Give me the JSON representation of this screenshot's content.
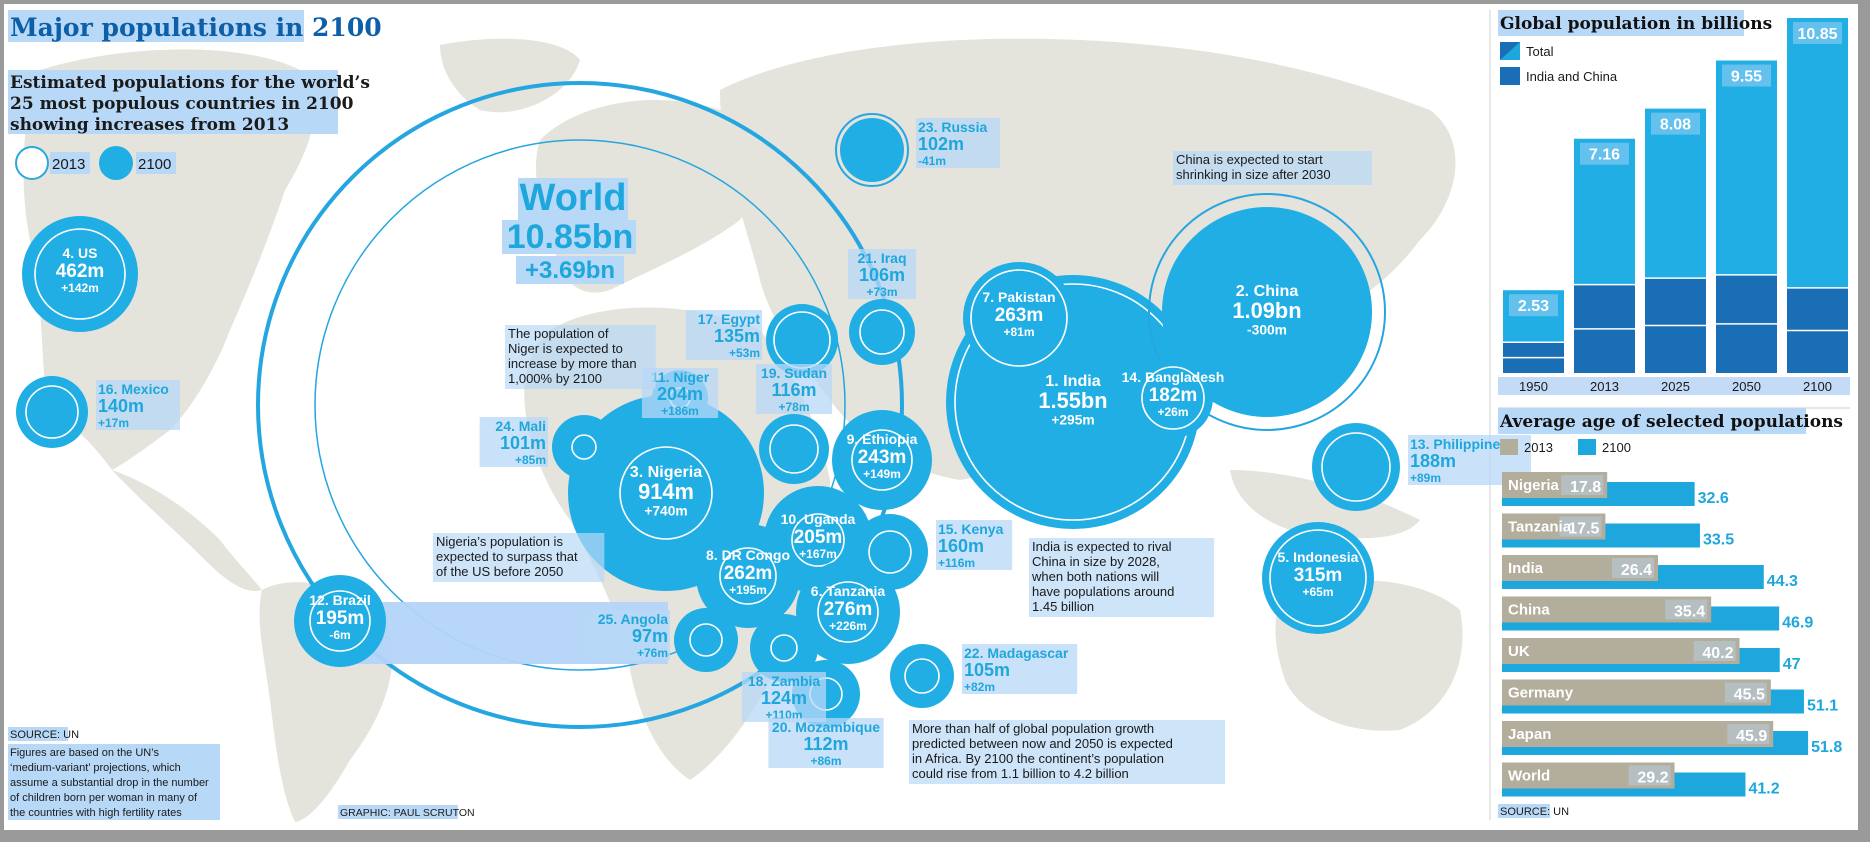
{
  "header": {
    "title": "Major populations in 2100",
    "subtitle_lines": [
      "Estimated populations for the world’s",
      "25 most populous countries in 2100",
      "showing increases from 2013"
    ]
  },
  "bubble_legend": {
    "y2013": "2013",
    "y2100": "2100"
  },
  "world": {
    "label": "World",
    "value": "10.85bn",
    "change": "+3.69bn"
  },
  "countries": [
    {
      "rank": "4. US",
      "value": "462m",
      "change": "+142m"
    },
    {
      "rank": "16. Mexico",
      "value": "140m",
      "change": "+17m"
    },
    {
      "rank": "23. Russia",
      "value": "102m",
      "change": "-41m"
    },
    {
      "rank": "21. Iraq",
      "value": "106m",
      "change": "+73m"
    },
    {
      "rank": "17. Egypt",
      "value": "135m",
      "change": "+53m"
    },
    {
      "rank": "19. Sudan",
      "value": "116m",
      "change": "+78m"
    },
    {
      "rank": "11. Niger",
      "value": "204m",
      "change": "+186m"
    },
    {
      "rank": "24. Mali",
      "value": "101m",
      "change": "+85m"
    },
    {
      "rank": "3. Nigeria",
      "value": "914m",
      "change": "+740m"
    },
    {
      "rank": "9. Ethiopia",
      "value": "243m",
      "change": "+149m"
    },
    {
      "rank": "10. Uganda",
      "value": "205m",
      "change": "+167m"
    },
    {
      "rank": "15. Kenya",
      "value": "160m",
      "change": "+116m"
    },
    {
      "rank": "8. DR Congo",
      "value": "262m",
      "change": "+195m"
    },
    {
      "rank": "6. Tanzania",
      "value": "276m",
      "change": "+226m"
    },
    {
      "rank": "25. Angola",
      "value": "97m",
      "change": "+76m"
    },
    {
      "rank": "18. Zambia",
      "value": "124m",
      "change": "+110m"
    },
    {
      "rank": "22. Madagascar",
      "value": "105m",
      "change": "+82m"
    },
    {
      "rank": "20. Mozambique",
      "value": "112m",
      "change": "+86m"
    },
    {
      "rank": "12. Brazil",
      "value": "195m",
      "change": "-6m"
    },
    {
      "rank": "7. Pakistan",
      "value": "263m",
      "change": "+81m"
    },
    {
      "rank": "1. India",
      "value": "1.55bn",
      "change": "+295m"
    },
    {
      "rank": "14. Bangladesh",
      "value": "182m",
      "change": "+26m"
    },
    {
      "rank": "2. China",
      "value": "1.09bn",
      "change": "-300m"
    },
    {
      "rank": "13. Philippines",
      "value": "188m",
      "change": "+89m"
    },
    {
      "rank": "5. Indonesia",
      "value": "315m",
      "change": "+65m"
    }
  ],
  "annotations": [
    {
      "lines": [
        "The population of",
        "Niger is expected to",
        "increase by more than",
        "1,000% by 2100"
      ]
    },
    {
      "lines": [
        "Nigeria’s population is",
        "expected to surpass that",
        "of the US before 2050"
      ]
    },
    {
      "lines": [
        "China is expected to start",
        "shrinking in size after 2030"
      ]
    },
    {
      "lines": [
        "India is expected to rival",
        "China in size by 2028,",
        "when both nations will",
        "have populations around",
        "1.45 billion"
      ]
    },
    {
      "lines": [
        "More than half of global population growth",
        "predicted between now and 2050 is expected",
        "in Africa. By 2100 the continent’s population",
        "could rise from 1.1 billion to 4.2 billion"
      ]
    }
  ],
  "footer": {
    "source": "SOURCE: UN",
    "note_lines": [
      "Figures are based on the UN’s",
      "‘medium-variant’ projections, which",
      "assume a substantial drop in the number",
      "of children born per woman in many of",
      "the countries with high fertility rates"
    ],
    "credit": "GRAPHIC: PAUL SCRUTON"
  },
  "colors": {
    "bubble": "#20aee5",
    "ring": "#25a6e0",
    "highlight": "#b8d8f7",
    "title": "#0d5fa8",
    "india_china": "#1a6eb6",
    "age_2013": "#b3ad9c",
    "age_2100": "#1ea7dc"
  },
  "chart_data": [
    {
      "type": "bar",
      "title": "Global population in billions",
      "categories": [
        "1950",
        "2013",
        "2025",
        "2050",
        "2100"
      ],
      "series": [
        {
          "name": "Total",
          "values": [
            2.53,
            7.16,
            8.08,
            9.55,
            10.85
          ]
        },
        {
          "name": "India and China",
          "values": [
            0.94,
            2.7,
            2.9,
            3.0,
            2.6
          ]
        }
      ],
      "ylim": [
        0,
        10.85
      ],
      "legend": "top-left"
    },
    {
      "type": "bar",
      "title": "Average age of selected populations",
      "orientation": "horizontal",
      "categories": [
        "Nigeria",
        "Tanzania",
        "India",
        "China",
        "UK",
        "Germany",
        "Japan",
        "World"
      ],
      "series": [
        {
          "name": "2013",
          "values": [
            17.8,
            17.5,
            26.4,
            35.4,
            40.2,
            45.5,
            45.9,
            29.2
          ]
        },
        {
          "name": "2100",
          "values": [
            32.6,
            33.5,
            44.3,
            46.9,
            47.0,
            51.1,
            51.8,
            41.2
          ]
        }
      ],
      "xlim": [
        0,
        55
      ],
      "legend": "top-left"
    }
  ]
}
